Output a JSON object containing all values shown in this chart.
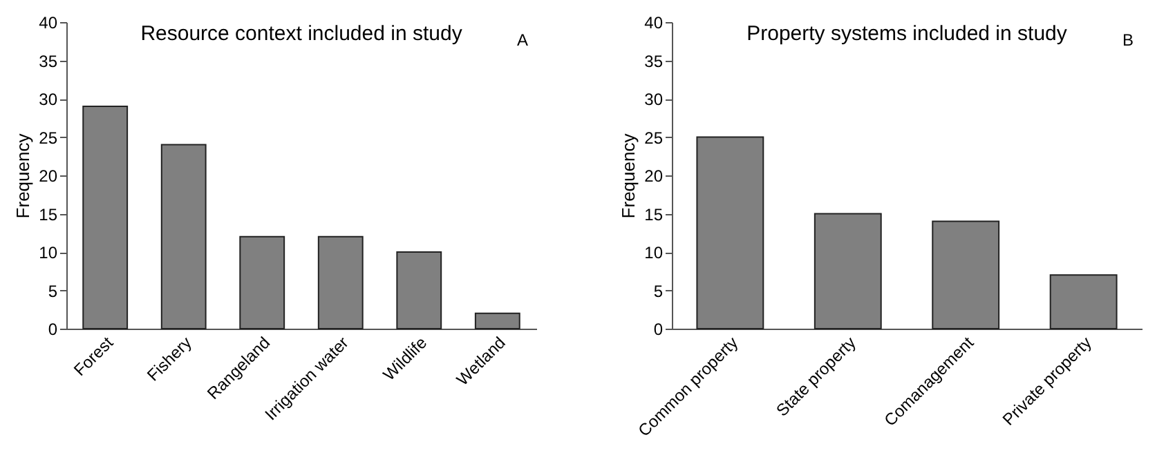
{
  "chart_data": [
    {
      "type": "bar",
      "title": "Resource context included in study",
      "ylabel": "Frequency",
      "annotations": [
        "A"
      ],
      "categories": [
        "Forest",
        "Fishery",
        "Rangeland",
        "Irrigation water",
        "Wildlife",
        "Wetland"
      ],
      "values": [
        29,
        24,
        12,
        12,
        10,
        2
      ],
      "color": "#808080",
      "ylim": [
        0,
        40
      ],
      "yticks": [
        0,
        5,
        10,
        15,
        20,
        25,
        30,
        35,
        40
      ],
      "grid": false
    },
    {
      "type": "bar",
      "title": "Property systems included in study",
      "ylabel": "Frequency",
      "annotations": [
        "B"
      ],
      "categories": [
        "Common property",
        "State property",
        "Comanagement",
        "Private property"
      ],
      "values": [
        25,
        15,
        14,
        7
      ],
      "color": "#808080",
      "ylim": [
        0,
        40
      ],
      "yticks": [
        0,
        5,
        10,
        15,
        20,
        25,
        30,
        35,
        40
      ],
      "grid": false
    }
  ]
}
